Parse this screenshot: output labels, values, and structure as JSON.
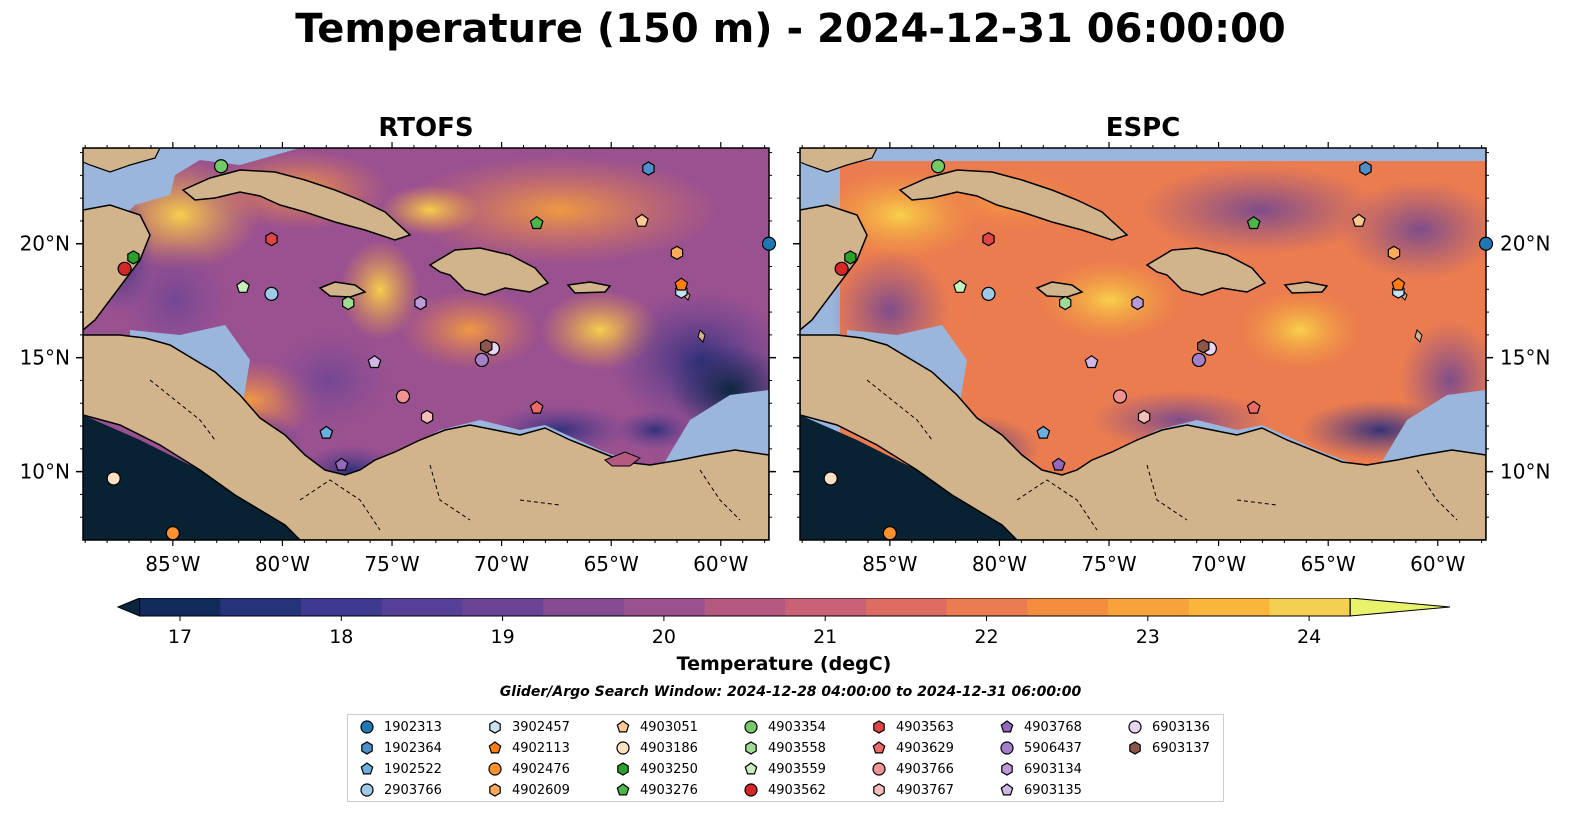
{
  "title": "Temperature (150 m) - 2024-12-31 06:00:00",
  "panels": [
    {
      "title": "RTOFS"
    },
    {
      "title": "ESPC"
    }
  ],
  "lon_ticks": [
    "85°W",
    "80°W",
    "75°W",
    "70°W",
    "65°W",
    "60°W"
  ],
  "lat_ticks": [
    "20°N",
    "15°N",
    "10°N"
  ],
  "colorbar": {
    "label": "Temperature (degC)",
    "ticks": [
      "17",
      "18",
      "19",
      "20",
      "21",
      "22",
      "23",
      "24"
    ],
    "colors": [
      "#0b2540",
      "#102a5a",
      "#24337a",
      "#3d3a8f",
      "#563f96",
      "#6b4595",
      "#844b93",
      "#9a5190",
      "#b4597f",
      "#c96274",
      "#dd6d63",
      "#eb7c4f",
      "#f38e3f",
      "#f7a23a",
      "#f9b53c",
      "#f3cf52",
      "#e8f26a"
    ]
  },
  "search_window": "Glider/Argo Search Window: 2024-12-28 04:00:00 to 2024-12-31 06:00:00",
  "legend": [
    {
      "label": "1902313",
      "marker": "circle",
      "color": "#1f77b4"
    },
    {
      "label": "1902364",
      "marker": "hexagon",
      "color": "#4c8fc9"
    },
    {
      "label": "1902522",
      "marker": "pentagon",
      "color": "#6ab0de"
    },
    {
      "label": "2903766",
      "marker": "circle",
      "color": "#9ecae9"
    },
    {
      "label": "3902457",
      "marker": "hexagon",
      "color": "#c6e3f5"
    },
    {
      "label": "4902113",
      "marker": "pentagon",
      "color": "#ff7f0e"
    },
    {
      "label": "4902476",
      "marker": "circle",
      "color": "#ff922e"
    },
    {
      "label": "4902609",
      "marker": "hexagon",
      "color": "#ffaa5a"
    },
    {
      "label": "4903051",
      "marker": "pentagon",
      "color": "#ffc792"
    },
    {
      "label": "4903186",
      "marker": "circle",
      "color": "#ffe0c2"
    },
    {
      "label": "4903250",
      "marker": "hexagon",
      "color": "#2ca02c"
    },
    {
      "label": "4903276",
      "marker": "pentagon",
      "color": "#4cb648"
    },
    {
      "label": "4903354",
      "marker": "circle",
      "color": "#74c96b"
    },
    {
      "label": "4903558",
      "marker": "hexagon",
      "color": "#9fdc93"
    },
    {
      "label": "4903559",
      "marker": "pentagon",
      "color": "#c8f0bd"
    },
    {
      "label": "4903562",
      "marker": "circle",
      "color": "#d62728"
    },
    {
      "label": "4903563",
      "marker": "hexagon",
      "color": "#e04545"
    },
    {
      "label": "4903629",
      "marker": "pentagon",
      "color": "#ea6a6a"
    },
    {
      "label": "4903766",
      "marker": "circle",
      "color": "#f29393"
    },
    {
      "label": "4903767",
      "marker": "hexagon",
      "color": "#f7bcbc"
    },
    {
      "label": "4903768",
      "marker": "pentagon",
      "color": "#9467bd"
    },
    {
      "label": "5906437",
      "marker": "circle",
      "color": "#a67fcb"
    },
    {
      "label": "6903134",
      "marker": "hexagon",
      "color": "#bb9ad8"
    },
    {
      "label": "6903135",
      "marker": "pentagon",
      "color": "#d0b8e6"
    },
    {
      "label": "6903136",
      "marker": "circle",
      "color": "#e6d6f4"
    },
    {
      "label": "6903137",
      "marker": "hexagon",
      "color": "#8c564b"
    }
  ],
  "floats": [
    {
      "id": "1902313",
      "lon": -57.8,
      "lat": 20.0
    },
    {
      "id": "1902364",
      "lon": -63.3,
      "lat": 23.3
    },
    {
      "id": "1902522",
      "lon": -78.0,
      "lat": 11.7
    },
    {
      "id": "2903766",
      "lon": -80.5,
      "lat": 17.8
    },
    {
      "id": "3902457",
      "lon": -61.8,
      "lat": 17.9
    },
    {
      "id": "4902113",
      "lon": -61.8,
      "lat": 18.2
    },
    {
      "id": "4902476",
      "lon": -85.0,
      "lat": 7.3
    },
    {
      "id": "4902609",
      "lon": -62.0,
      "lat": 19.6
    },
    {
      "id": "4903051",
      "lon": -63.6,
      "lat": 21.0
    },
    {
      "id": "4903186",
      "lon": -87.7,
      "lat": 9.7
    },
    {
      "id": "4903250",
      "lon": -86.8,
      "lat": 19.4
    },
    {
      "id": "4903276",
      "lon": -68.4,
      "lat": 20.9
    },
    {
      "id": "4903354",
      "lon": -82.8,
      "lat": 23.4
    },
    {
      "id": "4903558",
      "lon": -77.0,
      "lat": 17.4
    },
    {
      "id": "4903559",
      "lon": -81.8,
      "lat": 18.1
    },
    {
      "id": "4903562",
      "lon": -87.2,
      "lat": 18.9
    },
    {
      "id": "4903563",
      "lon": -80.5,
      "lat": 20.2
    },
    {
      "id": "4903629",
      "lon": -68.4,
      "lat": 12.8
    },
    {
      "id": "4903766",
      "lon": -74.5,
      "lat": 13.3
    },
    {
      "id": "4903767",
      "lon": -73.4,
      "lat": 12.4
    },
    {
      "id": "4903768",
      "lon": -77.3,
      "lat": 10.3
    },
    {
      "id": "5906437",
      "lon": -70.9,
      "lat": 14.9
    },
    {
      "id": "6903134",
      "lon": -73.7,
      "lat": 17.4
    },
    {
      "id": "6903135",
      "lon": -75.8,
      "lat": 14.8
    },
    {
      "id": "6903136",
      "lon": -70.4,
      "lat": 15.4
    },
    {
      "id": "6903137",
      "lon": -70.7,
      "lat": 15.5
    }
  ]
}
